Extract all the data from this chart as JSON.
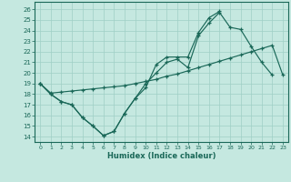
{
  "xlabel": "Humidex (Indice chaleur)",
  "xlim": [
    -0.5,
    23.5
  ],
  "ylim": [
    13.5,
    26.7
  ],
  "yticks": [
    14,
    15,
    16,
    17,
    18,
    19,
    20,
    21,
    22,
    23,
    24,
    25,
    26
  ],
  "xticks": [
    0,
    1,
    2,
    3,
    4,
    5,
    6,
    7,
    8,
    9,
    10,
    11,
    12,
    13,
    14,
    15,
    16,
    17,
    18,
    19,
    20,
    21,
    22,
    23
  ],
  "bg_color": "#c5e8e0",
  "grid_color": "#9fcfc5",
  "line_color": "#1a6858",
  "line1": {
    "x": [
      0,
      1,
      2,
      3,
      4,
      5,
      6,
      7,
      8,
      9,
      10,
      11,
      12,
      13,
      14,
      15,
      16,
      17,
      18,
      19,
      20,
      21,
      22
    ],
    "y": [
      19,
      18,
      17.3,
      17.0,
      15.8,
      15.0,
      14.1,
      14.5,
      16.2,
      17.6,
      19.0,
      20.0,
      21.0,
      21.3,
      20.5,
      23.5,
      24.7,
      25.7,
      24.3,
      24.1,
      22.5,
      21.0,
      19.8
    ]
  },
  "line2": {
    "x": [
      0,
      1,
      2,
      3,
      4,
      5,
      6,
      7,
      8,
      9,
      10,
      11,
      12,
      13,
      14,
      15,
      16,
      17
    ],
    "y": [
      19,
      18,
      17.3,
      17.0,
      15.8,
      15.0,
      14.1,
      14.5,
      16.2,
      17.6,
      18.6,
      20.8,
      21.5,
      21.5,
      21.5,
      23.8,
      25.2,
      25.8
    ]
  },
  "line3": {
    "x": [
      0,
      1,
      2,
      3,
      4,
      5,
      6,
      7,
      8,
      9,
      10,
      11,
      12,
      13,
      14,
      15,
      16,
      17,
      18,
      19,
      20,
      21,
      22,
      23
    ],
    "y": [
      19,
      18.1,
      18.2,
      18.3,
      18.4,
      18.5,
      18.6,
      18.7,
      18.8,
      19.0,
      19.2,
      19.4,
      19.7,
      19.9,
      20.2,
      20.5,
      20.8,
      21.1,
      21.4,
      21.7,
      22.0,
      22.3,
      22.6,
      19.8
    ]
  }
}
